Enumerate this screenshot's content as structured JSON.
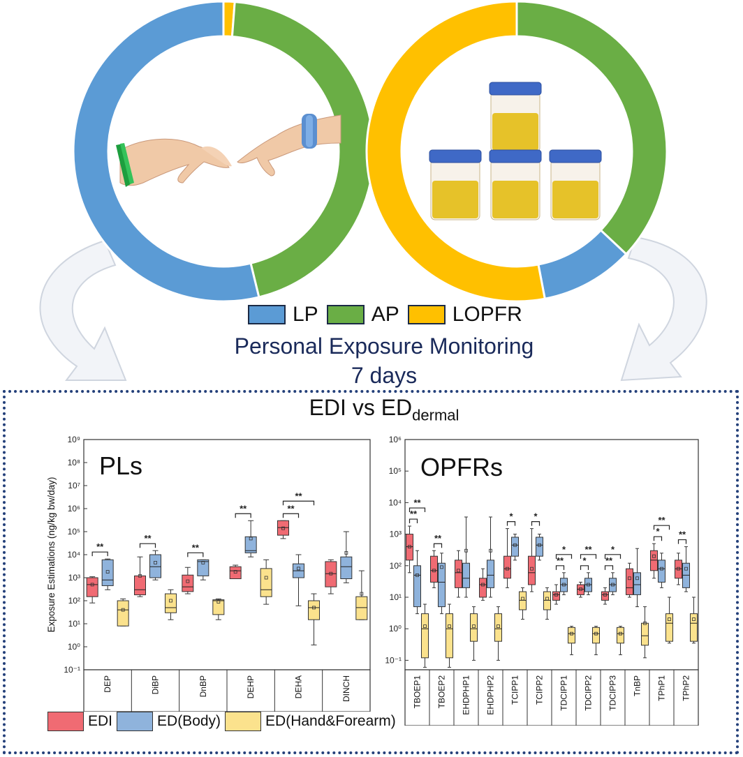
{
  "colors": {
    "lp": "#5b9bd5",
    "ap": "#6aae45",
    "lopfr": "#ffc000",
    "edi": "#f06b73",
    "ed_body": "#8fb3dc",
    "ed_hand": "#fbe28d",
    "title_blue": "#1a2a5a",
    "panel_border": "#24407a"
  },
  "donuts": {
    "left": {
      "icon": "hands-silicone-wristbands-icon",
      "segments": [
        {
          "key": "lopfr",
          "fraction": 0.012
        },
        {
          "key": "ap",
          "fraction": 0.45
        },
        {
          "key": "lp",
          "fraction": 0.538
        }
      ]
    },
    "right": {
      "icon": "urine-sample-cups-icon",
      "segments": [
        {
          "key": "ap",
          "fraction": 0.37
        },
        {
          "key": "lp",
          "fraction": 0.1
        },
        {
          "key": "lopfr",
          "fraction": 0.53
        }
      ]
    }
  },
  "top_legend": {
    "lp": "LP",
    "ap": "AP",
    "lopfr": "LOPFR"
  },
  "heading": {
    "line1": "Personal Exposure Monitoring",
    "line2": "7 days"
  },
  "edi_title": {
    "main": "EDI vs ED",
    "sub": "dermal"
  },
  "bottom_legend": {
    "edi": "EDI",
    "ed_body": "ED(Body)",
    "ed_hand": "ED(Hand&Forearm)"
  },
  "chart_data": [
    {
      "type": "box",
      "title": "PLs",
      "ylabel": "Exposure Estimations (ng/kg bw/day)",
      "yscale": "log",
      "ylim": [
        0.1,
        1000000000
      ],
      "yticks": [
        "10⁻¹",
        "10⁰",
        "10¹",
        "10²",
        "10³",
        "10⁴",
        "10⁵",
        "10⁶",
        "10⁷",
        "10⁸",
        "10⁹"
      ],
      "series": [
        "EDI",
        "ED(Body)",
        "ED(Hand&Forearm)"
      ],
      "categories": [
        "DEP",
        "DiBP",
        "DnBP",
        "DEHP",
        "DEHA",
        "DINCH"
      ],
      "boxes": [
        [
          {
            "min": 80,
            "q1": 150,
            "med": 500,
            "q3": 1000,
            "max": 1100,
            "mean": 500
          },
          {
            "min": 300,
            "q1": 450,
            "med": 800,
            "q3": 6000,
            "max": 6500,
            "mean": 1800
          },
          {
            "min": 8,
            "q1": 8,
            "med": 40,
            "q3": 100,
            "max": 120,
            "mean": 40
          }
        ],
        [
          {
            "min": 150,
            "q1": 180,
            "med": 300,
            "q3": 1200,
            "max": 8000,
            "mean": 1200
          },
          {
            "min": 800,
            "q1": 1000,
            "med": 3000,
            "q3": 10000,
            "max": 15000,
            "mean": 4500
          },
          {
            "min": 15,
            "q1": 30,
            "med": 50,
            "q3": 200,
            "max": 300,
            "mean": 100
          }
        ],
        [
          {
            "min": 200,
            "q1": 250,
            "med": 400,
            "q3": 1300,
            "max": 2800,
            "mean": 700
          },
          {
            "min": 800,
            "q1": 1200,
            "med": 5000,
            "q3": 6000,
            "max": 6000,
            "mean": 4500
          },
          {
            "min": 15,
            "q1": 25,
            "med": 100,
            "q3": 110,
            "max": 120,
            "mean": 90
          }
        ],
        [
          {
            "min": 900,
            "q1": 900,
            "med": 2000,
            "q3": 3000,
            "max": 3500,
            "mean": 1800
          },
          {
            "min": 8000,
            "q1": 12000,
            "med": 15000,
            "q3": 60000,
            "max": 300000,
            "mean": 50000
          },
          {
            "min": 70,
            "q1": 150,
            "med": 300,
            "q3": 2500,
            "max": 6000,
            "mean": 1000
          }
        ],
        [
          {
            "min": 50000,
            "q1": 70000,
            "med": 150000,
            "q3": 300000,
            "max": 300000,
            "mean": 140000
          },
          {
            "min": 60,
            "q1": 1000,
            "med": 2000,
            "q3": 4000,
            "max": 10000,
            "mean": 2500
          },
          {
            "min": 1.2,
            "q1": 15,
            "med": 50,
            "q3": 100,
            "max": 200,
            "mean": 50
          }
        ],
        [
          {
            "min": 200,
            "q1": 400,
            "med": 1500,
            "q3": 5000,
            "max": 6000,
            "mean": 1500
          },
          {
            "min": 600,
            "q1": 900,
            "med": 3000,
            "q3": 8000,
            "max": 100000,
            "mean": 12000
          },
          {
            "min": 15,
            "q1": 15,
            "med": 50,
            "q3": 150,
            "max": 2000,
            "mean": 200
          }
        ]
      ],
      "significance": [
        {
          "cat": 0,
          "from": 0,
          "to": 1,
          "label": "**"
        },
        {
          "cat": 1,
          "from": 0,
          "to": 1,
          "label": "**"
        },
        {
          "cat": 2,
          "from": 0,
          "to": 1,
          "label": "**"
        },
        {
          "cat": 3,
          "from": 0,
          "to": 1,
          "label": "**"
        },
        {
          "cat": 4,
          "from": 0,
          "to": 1,
          "label": "**"
        },
        {
          "cat": 4,
          "from": 0,
          "to": 2,
          "label": "**"
        }
      ]
    },
    {
      "type": "box",
      "title": "OPFRs",
      "yscale": "log",
      "ylim": [
        0.05,
        1000000
      ],
      "yticks": [
        "10⁻¹",
        "10⁰",
        "10¹",
        "10²",
        "10³",
        "10⁴",
        "10⁵",
        "10⁶"
      ],
      "series": [
        "EDI",
        "ED(Body)",
        "ED(Hand&Forearm)"
      ],
      "categories": [
        "TBOEP1",
        "TBOEP2",
        "EHDPHP1",
        "EHDPHP2",
        "TCIPP1",
        "TCIPP2",
        "TDCIPP1",
        "TDCIPP2",
        "TDCIPP3",
        "TnBP",
        "TPhP1",
        "TPhP2"
      ],
      "boxes": [
        [
          {
            "min": 60,
            "q1": 150,
            "med": 400,
            "q3": 1000,
            "max": 1800,
            "mean": 400
          },
          {
            "min": 3,
            "q1": 5,
            "med": 50,
            "q3": 100,
            "max": 300,
            "mean": 50
          },
          {
            "min": 0.06,
            "q1": 0.12,
            "med": 1,
            "q3": 3,
            "max": 6,
            "mean": 1.2
          }
        ],
        [
          {
            "min": 20,
            "q1": 30,
            "med": 70,
            "q3": 200,
            "max": 300,
            "mean": 70
          },
          {
            "min": 3,
            "q1": 5,
            "med": 30,
            "q3": 120,
            "max": 250,
            "mean": 90
          },
          {
            "min": 0.06,
            "q1": 0.12,
            "med": 1,
            "q3": 3,
            "max": 6,
            "mean": 1.2
          }
        ],
        [
          {
            "min": 10,
            "q1": 20,
            "med": 60,
            "q3": 150,
            "max": 300,
            "mean": 70
          },
          {
            "min": 10,
            "q1": 20,
            "med": 40,
            "q3": 120,
            "max": 3500,
            "mean": 300
          },
          {
            "min": 0.1,
            "q1": 0.4,
            "med": 1,
            "q3": 3,
            "max": 5,
            "mean": 1.2
          }
        ],
        [
          {
            "min": 8,
            "q1": 10,
            "med": 25,
            "q3": 40,
            "max": 80,
            "mean": 25
          },
          {
            "min": 10,
            "q1": 20,
            "med": 50,
            "q3": 150,
            "max": 3500,
            "mean": 300
          },
          {
            "min": 0.1,
            "q1": 0.4,
            "med": 1,
            "q3": 3,
            "max": 5,
            "mean": 1.2
          }
        ],
        [
          {
            "min": 20,
            "q1": 40,
            "med": 80,
            "q3": 200,
            "max": 1500,
            "mean": 80
          },
          {
            "min": 150,
            "q1": 200,
            "med": 450,
            "q3": 800,
            "max": 1000,
            "mean": 450
          },
          {
            "min": 2,
            "q1": 4,
            "med": 8,
            "q3": 15,
            "max": 20,
            "mean": 9
          }
        ],
        [
          {
            "min": 15,
            "q1": 25,
            "med": 60,
            "q3": 200,
            "max": 1500,
            "mean": 80
          },
          {
            "min": 150,
            "q1": 200,
            "med": 450,
            "q3": 800,
            "max": 1000,
            "mean": 450
          },
          {
            "min": 2,
            "q1": 4,
            "med": 8,
            "q3": 15,
            "max": 20,
            "mean": 9
          }
        ],
        [
          {
            "min": 6,
            "q1": 8,
            "med": 12,
            "q3": 15,
            "max": 25,
            "mean": 12
          },
          {
            "min": 12,
            "q1": 15,
            "med": 25,
            "q3": 40,
            "max": 60,
            "mean": 25
          },
          {
            "min": 0.15,
            "q1": 0.35,
            "med": 0.7,
            "q3": 1.1,
            "max": 1.2,
            "mean": 0.7
          }
        ],
        [
          {
            "min": 10,
            "q1": 12,
            "med": 18,
            "q3": 25,
            "max": 30,
            "mean": 18
          },
          {
            "min": 12,
            "q1": 15,
            "med": 25,
            "q3": 40,
            "max": 60,
            "mean": 25
          },
          {
            "min": 0.15,
            "q1": 0.35,
            "med": 0.7,
            "q3": 1.1,
            "max": 1.2,
            "mean": 0.7
          }
        ],
        [
          {
            "min": 6,
            "q1": 8,
            "med": 12,
            "q3": 15,
            "max": 20,
            "mean": 12
          },
          {
            "min": 12,
            "q1": 15,
            "med": 25,
            "q3": 40,
            "max": 60,
            "mean": 25
          },
          {
            "min": 0.15,
            "q1": 0.35,
            "med": 0.7,
            "q3": 1.1,
            "max": 1.2,
            "mean": 0.7
          }
        ],
        [
          {
            "min": 10,
            "q1": 12,
            "med": 20,
            "q3": 80,
            "max": 120,
            "mean": 40
          },
          {
            "min": 5,
            "q1": 12,
            "med": 25,
            "q3": 60,
            "max": 350,
            "mean": 40
          },
          {
            "min": 0.12,
            "q1": 0.3,
            "med": 0.6,
            "q3": 1.5,
            "max": 5,
            "mean": 1.5
          }
        ],
        [
          {
            "min": 40,
            "q1": 70,
            "med": 150,
            "q3": 300,
            "max": 500,
            "mean": 200
          },
          {
            "min": 20,
            "q1": 30,
            "med": 80,
            "q3": 150,
            "max": 250,
            "mean": 80
          },
          {
            "min": 0.35,
            "q1": 0.4,
            "med": 1.5,
            "q3": 3,
            "max": 10,
            "mean": 2
          }
        ],
        [
          {
            "min": 25,
            "q1": 40,
            "med": 80,
            "q3": 150,
            "max": 250,
            "mean": 80
          },
          {
            "min": 15,
            "q1": 20,
            "med": 50,
            "q3": 120,
            "max": 400,
            "mean": 80
          },
          {
            "min": 0.35,
            "q1": 0.4,
            "med": 1.5,
            "q3": 3,
            "max": 10,
            "mean": 2
          }
        ]
      ],
      "significance": [
        {
          "cat": 0,
          "from": 0,
          "to": 1,
          "label": "**"
        },
        {
          "cat": 0,
          "from": 0,
          "to": 2,
          "label": "**"
        },
        {
          "cat": 1,
          "from": 0,
          "to": 1,
          "label": "**"
        },
        {
          "cat": 4,
          "from": 0,
          "to": 1,
          "label": "*"
        },
        {
          "cat": 5,
          "from": 0,
          "to": 1,
          "label": "*"
        },
        {
          "cat": 6,
          "from": 0,
          "to": 1,
          "label": "**"
        },
        {
          "cat": 6,
          "from": 0,
          "to": 2,
          "label": "*"
        },
        {
          "cat": 7,
          "from": 0,
          "to": 1,
          "label": "*"
        },
        {
          "cat": 7,
          "from": 0,
          "to": 2,
          "label": "**"
        },
        {
          "cat": 8,
          "from": 0,
          "to": 1,
          "label": "**"
        },
        {
          "cat": 8,
          "from": 0,
          "to": 2,
          "label": "*"
        },
        {
          "cat": 10,
          "from": 0,
          "to": 1,
          "label": "*"
        },
        {
          "cat": 10,
          "from": 0,
          "to": 2,
          "label": "**"
        },
        {
          "cat": 11,
          "from": 0,
          "to": 1,
          "label": "**"
        }
      ]
    }
  ]
}
